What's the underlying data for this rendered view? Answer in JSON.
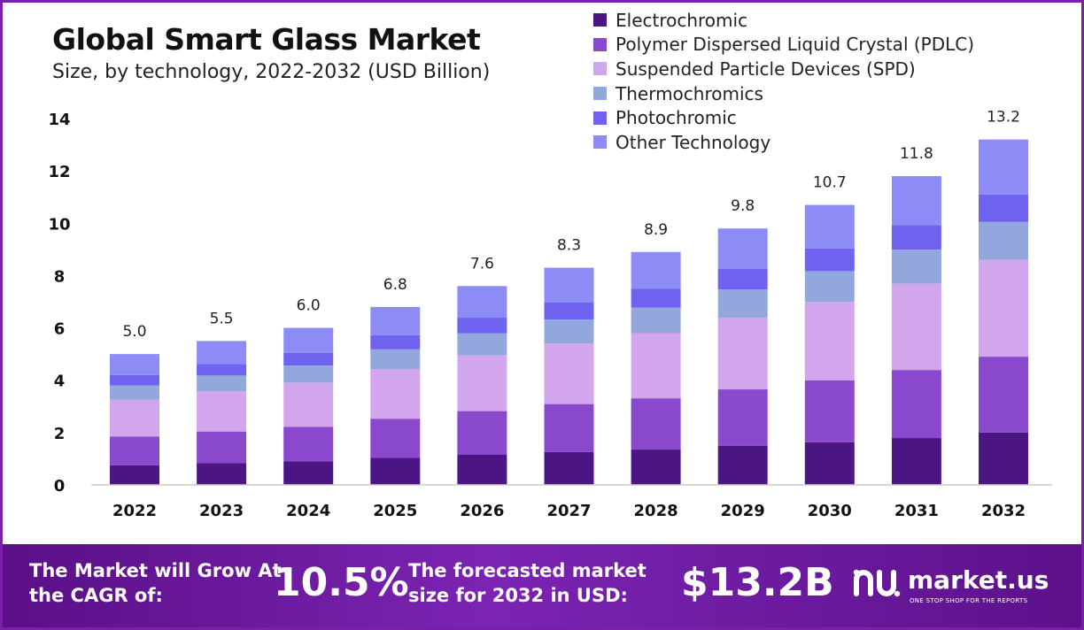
{
  "title": "Global Smart Glass Market",
  "subtitle": "Size, by technology, 2022-2032 (USD Billion)",
  "colors": {
    "frame": "#7a1fa8",
    "axis": "#cccccc",
    "text": "#222222"
  },
  "chart_data": {
    "type": "bar",
    "stacked": true,
    "title": "Global Smart Glass Market",
    "subtitle": "Size, by technology, 2022-2032 (USD Billion)",
    "xlabel": "",
    "ylabel": "",
    "ylim": [
      0,
      14
    ],
    "yticks": [
      0,
      2,
      4,
      6,
      8,
      10,
      12,
      14
    ],
    "grid": false,
    "legend_position": "top-right",
    "categories": [
      "2022",
      "2023",
      "2024",
      "2025",
      "2026",
      "2027",
      "2028",
      "2029",
      "2030",
      "2031",
      "2032"
    ],
    "totals": [
      "5.0",
      "5.5",
      "6.0",
      "6.8",
      "7.6",
      "8.3",
      "8.9",
      "9.8",
      "10.7",
      "11.8",
      "13.2"
    ],
    "series": [
      {
        "name": "Electrochromic",
        "color": "#4b1583",
        "values": [
          0.75,
          0.83,
          0.9,
          1.03,
          1.15,
          1.26,
          1.35,
          1.49,
          1.63,
          1.79,
          2.0
        ]
      },
      {
        "name": "Polymer Dispersed Liquid Crystal (PDLC)",
        "color": "#8a48cc",
        "values": [
          1.1,
          1.21,
          1.32,
          1.5,
          1.67,
          1.83,
          1.96,
          2.16,
          2.36,
          2.6,
          2.9
        ]
      },
      {
        "name": "Suspended Particle Devices (SPD)",
        "color": "#d2a6ec",
        "values": [
          1.4,
          1.54,
          1.68,
          1.9,
          2.13,
          2.32,
          2.49,
          2.74,
          3.0,
          3.3,
          3.7
        ]
      },
      {
        "name": "Thermochromics",
        "color": "#92a8dc",
        "values": [
          0.55,
          0.6,
          0.66,
          0.75,
          0.84,
          0.91,
          0.98,
          1.08,
          1.18,
          1.3,
          1.45
        ]
      },
      {
        "name": "Photochromic",
        "color": "#6f62ee",
        "values": [
          0.4,
          0.44,
          0.48,
          0.54,
          0.6,
          0.66,
          0.71,
          0.78,
          0.86,
          0.94,
          1.05
        ]
      },
      {
        "name": "Other Technology",
        "color": "#8d8cf6",
        "values": [
          0.8,
          0.88,
          0.96,
          1.08,
          1.21,
          1.32,
          1.41,
          1.55,
          1.67,
          1.87,
          2.1
        ]
      }
    ]
  },
  "footer": {
    "cagr_label": "The Market will Grow At the CAGR of:",
    "cagr_value": "10.5%",
    "size_label": "The forecasted market size for 2032 in USD:",
    "size_value": "$13.2B",
    "brand_name": "market.us",
    "brand_tagline": "ONE STOP SHOP FOR THE REPORTS",
    "brand_icon": "market-us-logo-icon"
  }
}
